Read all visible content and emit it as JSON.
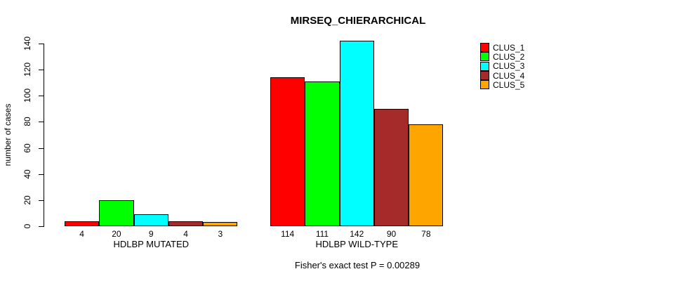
{
  "chart_data": {
    "type": "bar",
    "title": "MIRSEQ_CHIERARCHICAL",
    "xlabel": "",
    "ylabel": "number of cases",
    "ylim": [
      0,
      140
    ],
    "yticks": [
      0,
      20,
      40,
      60,
      80,
      100,
      120,
      140
    ],
    "categories": [
      "HDLBP MUTATED",
      "HDLBP WILD-TYPE"
    ],
    "series": [
      {
        "name": "CLUS_1",
        "color": "#FF0000",
        "values": [
          4,
          114
        ]
      },
      {
        "name": "CLUS_2",
        "color": "#00FF00",
        "values": [
          20,
          111
        ]
      },
      {
        "name": "CLUS_3",
        "color": "#00FFFF",
        "values": [
          9,
          142
        ]
      },
      {
        "name": "CLUS_4",
        "color": "#A52A2A",
        "values": [
          4,
          90
        ]
      },
      {
        "name": "CLUS_5",
        "color": "#FFA500",
        "values": [
          3,
          78
        ]
      }
    ],
    "bar_value_labels": true,
    "grid": false,
    "legend_position": "right",
    "annotation": "Fisher's exact test P = 0.00289"
  }
}
